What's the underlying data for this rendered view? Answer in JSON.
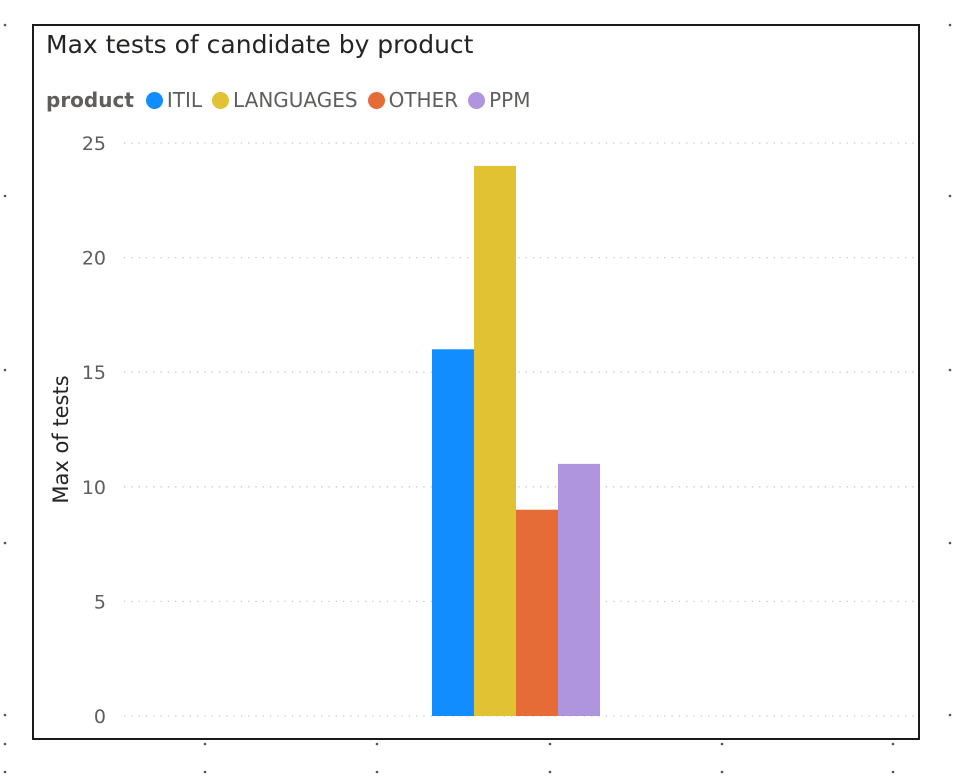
{
  "chart_data": {
    "type": "bar",
    "title": "Max tests of candidate by product",
    "xlabel": "",
    "ylabel": "Max of tests",
    "legend_title": "product",
    "legend_position": "top-left",
    "grid": true,
    "ylim": [
      0,
      25
    ],
    "yticks": [
      0,
      5,
      10,
      15,
      20,
      25
    ],
    "categories": [
      ""
    ],
    "series": [
      {
        "name": "ITIL",
        "color": "#118DFF",
        "values": [
          16
        ]
      },
      {
        "name": "LANGUAGES",
        "color": "#E1C233",
        "values": [
          24
        ]
      },
      {
        "name": "OTHER",
        "color": "#E66C37",
        "values": [
          9
        ]
      },
      {
        "name": "PPM",
        "color": "#AE95DD",
        "values": [
          11
        ]
      }
    ]
  }
}
